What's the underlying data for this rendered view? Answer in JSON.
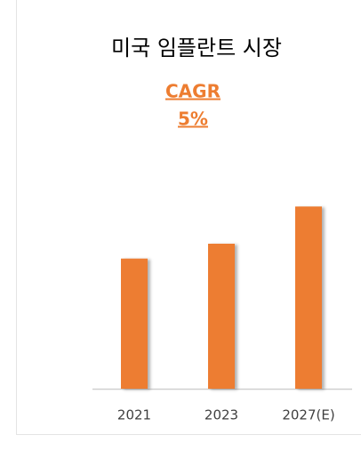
{
  "chart_data": {
    "type": "bar",
    "title": "미국 임플란트 시장",
    "annotations": [
      "CAGR",
      "5%"
    ],
    "categories": [
      "2021",
      "2023",
      "2027(E)"
    ],
    "values": [
      70,
      78,
      98
    ],
    "color": "#ed7d31",
    "ylim": [
      0,
      100
    ]
  }
}
